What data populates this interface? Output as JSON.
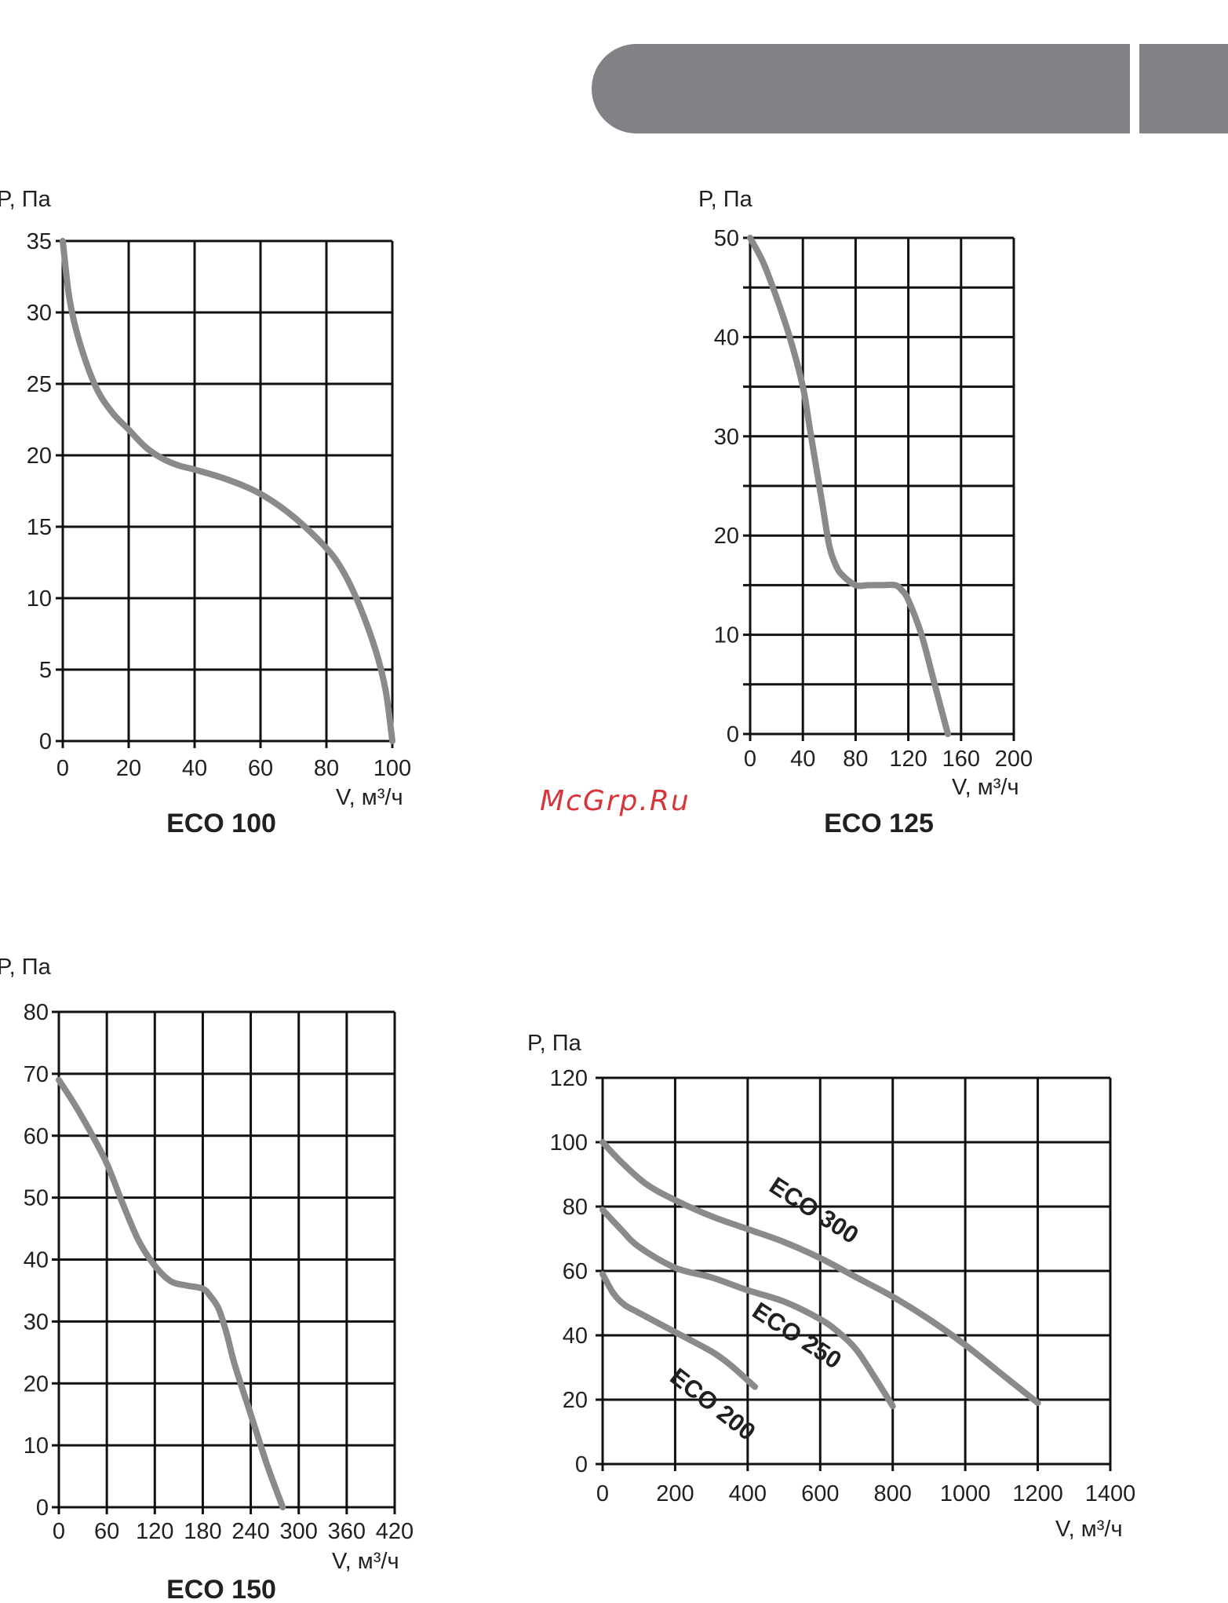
{
  "header": {
    "bar_color": "#808285"
  },
  "watermark": {
    "text": "McGrp.Ru",
    "color": "#d9343a"
  },
  "chart_data": [
    {
      "type": "line",
      "title": "ECO 100",
      "ylabel": "P, Па",
      "xlabel": "V, м³/ч",
      "xlim": [
        0,
        100
      ],
      "ylim": [
        0,
        35
      ],
      "xticks": [
        0,
        20,
        40,
        60,
        80,
        100
      ],
      "yticks": [
        0,
        5,
        10,
        15,
        20,
        25,
        30,
        35
      ],
      "xgrid": [
        0,
        20,
        40,
        60,
        80,
        100
      ],
      "ygrid": [
        0,
        5,
        10,
        15,
        20,
        25,
        30,
        35
      ],
      "grid": true,
      "series": [
        {
          "x": [
            0,
            2,
            5,
            10,
            15,
            20,
            25,
            30,
            35,
            40,
            50,
            60,
            70,
            80,
            85,
            90,
            95,
            98,
            100
          ],
          "y": [
            35,
            31,
            28,
            24.8,
            23,
            21.8,
            20.6,
            19.8,
            19.3,
            19,
            18.3,
            17.3,
            15.7,
            13.5,
            11.9,
            9.5,
            6.3,
            3.5,
            0
          ]
        }
      ]
    },
    {
      "type": "line",
      "title": "ECO 125",
      "ylabel": "P, Па",
      "xlabel": "V, м³/ч",
      "xlim": [
        0,
        200
      ],
      "ylim": [
        0,
        50
      ],
      "xticks": [
        0,
        40,
        80,
        120,
        160,
        200
      ],
      "yticks": [
        0,
        10,
        20,
        30,
        40,
        50
      ],
      "xgrid": [
        0,
        40,
        80,
        120,
        160,
        200
      ],
      "ygrid": [
        0,
        5,
        10,
        15,
        20,
        25,
        30,
        35,
        40,
        45,
        50
      ],
      "grid": true,
      "series": [
        {
          "x": [
            0,
            10,
            20,
            30,
            40,
            45,
            50,
            55,
            60,
            65,
            70,
            80,
            90,
            100,
            110,
            115,
            120,
            130,
            140,
            150
          ],
          "y": [
            50,
            47.5,
            44,
            40,
            35,
            31,
            27,
            23,
            19,
            17,
            16,
            15,
            15,
            15,
            15,
            14.5,
            13.5,
            10,
            5,
            0
          ]
        }
      ]
    },
    {
      "type": "line",
      "title": "ECO 150",
      "ylabel": "P, Па",
      "xlabel": "V, м³/ч",
      "xlim": [
        0,
        420
      ],
      "ylim": [
        0,
        80
      ],
      "xticks": [
        0,
        60,
        120,
        180,
        240,
        300,
        360,
        420
      ],
      "yticks": [
        0,
        10,
        20,
        30,
        40,
        50,
        60,
        70,
        80
      ],
      "xgrid": [
        0,
        60,
        120,
        180,
        240,
        300,
        360,
        420
      ],
      "ygrid": [
        0,
        10,
        20,
        30,
        40,
        50,
        60,
        70,
        80
      ],
      "grid": true,
      "series": [
        {
          "x": [
            0,
            20,
            40,
            60,
            80,
            100,
            120,
            140,
            160,
            180,
            190,
            200,
            210,
            220,
            240,
            260,
            280
          ],
          "y": [
            69,
            65,
            60.5,
            55.5,
            49,
            43,
            39,
            36.5,
            35.8,
            35.3,
            34,
            32,
            28,
            23,
            15,
            7,
            0
          ]
        }
      ]
    },
    {
      "type": "line",
      "ylabel": "P, Па",
      "xlabel": "V, м³/ч",
      "xlim": [
        0,
        1400
      ],
      "ylim": [
        0,
        120
      ],
      "xticks": [
        0,
        200,
        400,
        600,
        800,
        1000,
        1200,
        1400
      ],
      "yticks": [
        0,
        20,
        40,
        60,
        80,
        100,
        120
      ],
      "ygrid": [
        0,
        20,
        40,
        60,
        80,
        100,
        120
      ],
      "xgrid": [
        0,
        200,
        400,
        600,
        800,
        1000,
        1200,
        1400
      ],
      "grid": true,
      "series": [
        {
          "name": "ECO 300",
          "x": [
            0,
            50,
            120,
            200,
            300,
            400,
            500,
            600,
            700,
            800,
            900,
            1000,
            1100,
            1200
          ],
          "y": [
            100,
            94,
            87,
            82,
            77,
            73,
            69,
            64,
            58,
            52,
            45,
            37,
            28,
            19
          ]
        },
        {
          "name": "ECO 250",
          "x": [
            0,
            50,
            100,
            200,
            300,
            400,
            500,
            600,
            650,
            700,
            750,
            800
          ],
          "y": [
            79,
            73,
            67.5,
            61,
            58,
            54,
            50.5,
            45,
            41,
            35.5,
            27,
            18
          ]
        },
        {
          "name": "ECO 200",
          "x": [
            0,
            30,
            60,
            100,
            200,
            300,
            350,
            400,
            420
          ],
          "y": [
            59,
            53,
            49.5,
            47,
            41,
            35,
            31,
            26,
            24
          ]
        }
      ],
      "annotations": [
        "ECO 300",
        "ECO 250",
        "ECO 200"
      ]
    }
  ]
}
